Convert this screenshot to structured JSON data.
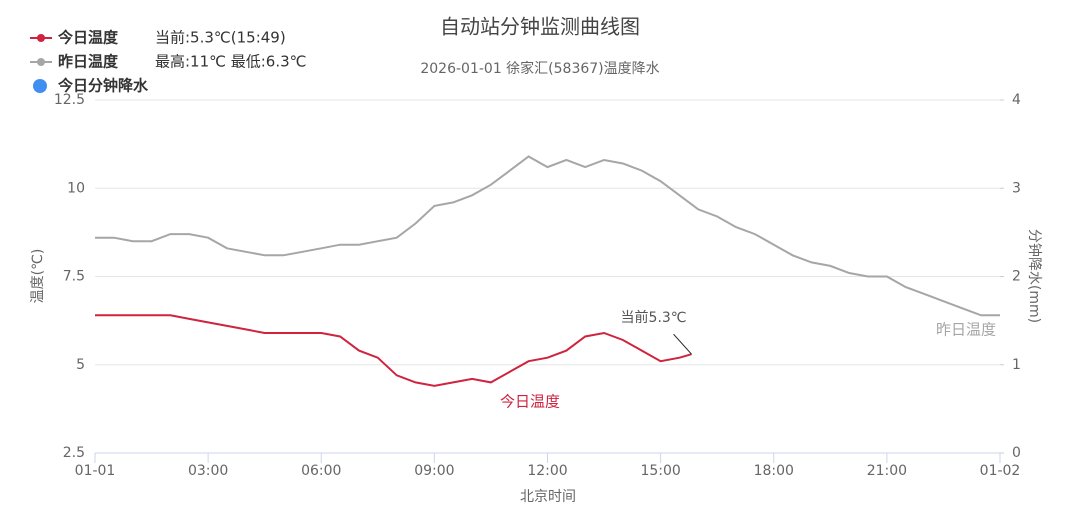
{
  "chart_data": {
    "type": "line",
    "title": "自动站分钟监测曲线图",
    "subtitle": "2026-01-01 徐家汇(58367)温度降水",
    "xlabel": "北京时间",
    "ylabel": "温度(℃)",
    "y2label": "分钟降水(mm)",
    "current_info": "当前:5.3℃(15:49)",
    "range_info": "最高:11℃ 最低:6.3℃",
    "xlim": [
      0,
      24
    ],
    "xticks": [
      {
        "value": 0,
        "label": "01-01"
      },
      {
        "value": 3,
        "label": "03:00"
      },
      {
        "value": 6,
        "label": "06:00"
      },
      {
        "value": 9,
        "label": "09:00"
      },
      {
        "value": 12,
        "label": "12:00"
      },
      {
        "value": 15,
        "label": "15:00"
      },
      {
        "value": 18,
        "label": "18:00"
      },
      {
        "value": 21,
        "label": "21:00"
      },
      {
        "value": 24,
        "label": "01-02"
      }
    ],
    "ylim": [
      2.5,
      12.5
    ],
    "yticks": [
      2.5,
      5,
      7.5,
      10,
      12.5
    ],
    "y2lim": [
      0,
      4
    ],
    "y2ticks": [
      0,
      1,
      2,
      3,
      4
    ],
    "grid": true,
    "series": [
      {
        "name": "今日温度",
        "color": "#d0233f",
        "label": "今日温度",
        "x": [
          0,
          0.5,
          1,
          1.5,
          2,
          2.5,
          3,
          3.5,
          4,
          4.5,
          5,
          5.5,
          6,
          6.5,
          7,
          7.5,
          8,
          8.5,
          9,
          9.5,
          10,
          10.5,
          11,
          11.5,
          12,
          12.5,
          13,
          13.5,
          14,
          14.5,
          15,
          15.5,
          15.82
        ],
        "values": [
          6.4,
          6.4,
          6.4,
          6.4,
          6.4,
          6.3,
          6.2,
          6.1,
          6.0,
          5.9,
          5.9,
          5.9,
          5.9,
          5.8,
          5.4,
          5.2,
          4.7,
          4.5,
          4.4,
          4.5,
          4.6,
          4.5,
          4.8,
          5.1,
          5.2,
          5.4,
          5.8,
          5.9,
          5.7,
          5.4,
          5.1,
          5.2,
          5.3
        ],
        "annotation": "当前5.3℃"
      },
      {
        "name": "昨日温度",
        "color": "#a6a6a6",
        "label": "昨日温度",
        "x": [
          0,
          0.5,
          1,
          1.5,
          2,
          2.5,
          3,
          3.5,
          4,
          4.5,
          5,
          5.5,
          6,
          6.5,
          7,
          7.5,
          8,
          8.5,
          9,
          9.5,
          10,
          10.5,
          11,
          11.5,
          12,
          12.5,
          13,
          13.5,
          14,
          14.5,
          15,
          15.5,
          16,
          16.5,
          17,
          17.5,
          18,
          18.5,
          19,
          19.5,
          20,
          20.5,
          21,
          21.5,
          22,
          22.5,
          23,
          23.5,
          24
        ],
        "values": [
          8.6,
          8.6,
          8.5,
          8.5,
          8.7,
          8.7,
          8.6,
          8.3,
          8.2,
          8.1,
          8.1,
          8.2,
          8.3,
          8.4,
          8.4,
          8.5,
          8.6,
          9.0,
          9.5,
          9.6,
          9.8,
          10.1,
          10.5,
          10.9,
          10.6,
          10.8,
          10.6,
          10.8,
          10.7,
          10.5,
          10.2,
          9.8,
          9.4,
          9.2,
          8.9,
          8.7,
          8.4,
          8.1,
          7.9,
          7.8,
          7.6,
          7.5,
          7.5,
          7.2,
          7.0,
          6.8,
          6.6,
          6.4,
          6.4
        ]
      },
      {
        "name": "今日分钟降水",
        "color": "#3f8ef0",
        "axis": "y2",
        "x": [],
        "values": []
      }
    ]
  }
}
